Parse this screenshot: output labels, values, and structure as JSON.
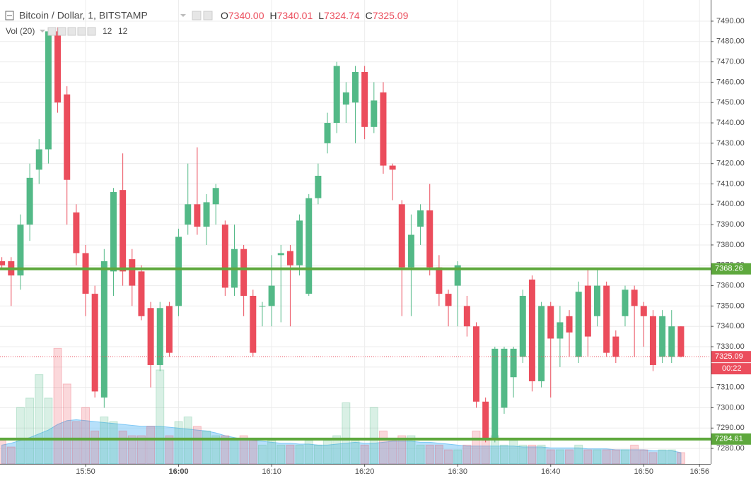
{
  "chart_data": {
    "type": "candlestick",
    "title": "Bitcoin / Dollar, 1, BITSTAMP",
    "ohlc_readout": [
      {
        "label": "O",
        "value": "7340.00"
      },
      {
        "label": "H",
        "value": "7340.01"
      },
      {
        "label": "L",
        "value": "7324.74"
      },
      {
        "label": "C",
        "value": "7325.09"
      }
    ],
    "volume_title": "Vol (20)",
    "volume_readout": [
      12,
      12
    ],
    "up_color": "#53b987",
    "down_color": "#eb4d5c",
    "ma_color": "#7cc7f5",
    "x": [
      941,
      942,
      943,
      944,
      945,
      946,
      947,
      948,
      949,
      950,
      951,
      952,
      953,
      954,
      955,
      956,
      957,
      958,
      959,
      960,
      961,
      962,
      963,
      964,
      965,
      966,
      967,
      968,
      969,
      970,
      971,
      972,
      973,
      974,
      975,
      976,
      977,
      978,
      979,
      980,
      981,
      982,
      983,
      984,
      985,
      986,
      987,
      988,
      989,
      990,
      991,
      992,
      993,
      994,
      995,
      996,
      997,
      998,
      999,
      1000,
      1001,
      1002,
      1003,
      1004,
      1005,
      1006,
      1007,
      1008,
      1009,
      1010,
      1011,
      1012,
      1013,
      1014
    ],
    "open": [
      7372,
      7372,
      7365,
      7390,
      7417,
      7427,
      7485,
      7454,
      7396,
      7376,
      7356,
      7305,
      7367,
      7407,
      7373,
      7367,
      7349,
      7321,
      7350,
      7350,
      7390,
      7400,
      7389,
      7400,
      7390,
      7359,
      7378,
      7355,
      7350,
      7350,
      7375,
      7377,
      7370,
      7356,
      7403,
      7430,
      7440,
      7449,
      7450,
      7465,
      7438,
      7455,
      7419,
      7400,
      7369,
      7389,
      7397,
      7369,
      7356,
      7360,
      7350,
      7340,
      7303,
      7285,
      7300,
      7315,
      7325,
      7363,
      7313,
      7350,
      7334,
      7345,
      7325,
      7360,
      7345,
      7360,
      7335,
      7345,
      7358,
      7350,
      7345,
      7325,
      7325,
      7340
    ],
    "high": [
      7374,
      7374,
      7395,
      7420,
      7432,
      7487,
      7487,
      7458,
      7400,
      7380,
      7360,
      7378,
      7408,
      7425,
      7378,
      7370,
      7352,
      7352,
      7352,
      7388,
      7420,
      7428,
      7405,
      7410,
      7392,
      7390,
      7380,
      7358,
      7352,
      7375,
      7380,
      7380,
      7395,
      7405,
      7420,
      7445,
      7470,
      7460,
      7468,
      7468,
      7460,
      7460,
      7420,
      7402,
      7395,
      7400,
      7410,
      7375,
      7358,
      7372,
      7355,
      7342,
      7305,
      7330,
      7330,
      7330,
      7358,
      7365,
      7352,
      7352,
      7350,
      7348,
      7362,
      7368,
      7368,
      7362,
      7338,
      7360,
      7360,
      7352,
      7348,
      7348,
      7348,
      7340.01
    ],
    "low": [
      7368,
      7350,
      7358,
      7382,
      7410,
      7420,
      7445,
      7390,
      7370,
      7345,
      7305,
      7300,
      7355,
      7360,
      7350,
      7343,
      7310,
      7318,
      7325,
      7345,
      7385,
      7385,
      7380,
      7390,
      7355,
      7355,
      7345,
      7325,
      7340,
      7340,
      7342,
      7340,
      7365,
      7355,
      7400,
      7425,
      7435,
      7440,
      7430,
      7432,
      7435,
      7415,
      7402,
      7345,
      7345,
      7380,
      7365,
      7350,
      7340,
      7340,
      7335,
      7300,
      7283,
      7283,
      7297,
      7305,
      7322,
      7308,
      7310,
      7305,
      7320,
      7325,
      7322,
      7325,
      7340,
      7325,
      7322,
      7340,
      7325,
      7330,
      7318,
      7322,
      7322,
      7324.74
    ],
    "close": [
      7370,
      7365,
      7390,
      7413,
      7427,
      7485,
      7450,
      7412,
      7376,
      7356,
      7308,
      7372,
      7406,
      7367,
      7360,
      7345,
      7321,
      7349,
      7327,
      7384,
      7400,
      7389,
      7401,
      7408,
      7359,
      7378,
      7355,
      7327,
      7350,
      7360,
      7376,
      7370,
      7392,
      7403,
      7414,
      7440,
      7468,
      7455,
      7465,
      7438,
      7451,
      7419,
      7417,
      7369,
      7385,
      7397,
      7369,
      7356,
      7350,
      7370,
      7340,
      7303,
      7285,
      7329,
      7329,
      7329,
      7355,
      7313,
      7350,
      7334,
      7342,
      7337,
      7357,
      7335,
      7360,
      7327,
      7325,
      7358,
      7350,
      7345,
      7321,
      7345,
      7340,
      7325.09
    ],
    "volume": [
      25,
      18,
      60,
      70,
      95,
      70,
      123,
      85,
      45,
      60,
      35,
      50,
      45,
      35,
      30,
      30,
      40,
      100,
      30,
      45,
      50,
      40,
      35,
      30,
      30,
      25,
      30,
      25,
      20,
      25,
      20,
      20,
      20,
      25,
      20,
      25,
      30,
      65,
      25,
      20,
      60,
      35,
      25,
      30,
      30,
      20,
      20,
      20,
      15,
      15,
      20,
      35,
      25,
      30,
      20,
      25,
      20,
      20,
      20,
      15,
      15,
      15,
      20,
      15,
      15,
      15,
      15,
      15,
      20,
      15,
      12,
      15,
      15,
      12
    ],
    "volume_ma": [
      20,
      22,
      25,
      28,
      32,
      36,
      42,
      46,
      47,
      46,
      45,
      44,
      43,
      42,
      41,
      40,
      40,
      40,
      39,
      38,
      37,
      36,
      35,
      33,
      30,
      28,
      26,
      25,
      24,
      23,
      22,
      22,
      21,
      21,
      20,
      20,
      21,
      22,
      23,
      22,
      22,
      23,
      24,
      24,
      24,
      23,
      23,
      22,
      21,
      20,
      19,
      19,
      19,
      19,
      19,
      19,
      18,
      18,
      18,
      17,
      17,
      17,
      17,
      16,
      16,
      16,
      15,
      15,
      15,
      15,
      14,
      14,
      14,
      12
    ],
    "vlim": [
      0,
      130
    ],
    "xlim": [
      940.8,
      1017.2
    ],
    "xticks": [
      {
        "value": 950,
        "label": "15:50"
      },
      {
        "value": 960,
        "label": "16:00"
      },
      {
        "value": 970,
        "label": "16:10"
      },
      {
        "value": 980,
        "label": "16:20"
      },
      {
        "value": 990,
        "label": "16:30"
      },
      {
        "value": 1000,
        "label": "16:40"
      },
      {
        "value": 1010,
        "label": "16:50"
      },
      {
        "value": 1016,
        "label": "16:56"
      }
    ],
    "ylim": [
      7272.4,
      7500.4
    ],
    "yticks": [
      {
        "value": 7280,
        "label": "7280.00"
      },
      {
        "value": 7290,
        "label": "7290.00"
      },
      {
        "value": 7300,
        "label": "7300.00"
      },
      {
        "value": 7310,
        "label": "7310.00"
      },
      {
        "value": 7320,
        "label": "7320.00"
      },
      {
        "value": 7330,
        "label": "7330.00"
      },
      {
        "value": 7340,
        "label": "7340.00"
      },
      {
        "value": 7350,
        "label": "7350.00"
      },
      {
        "value": 7360,
        "label": "7360.00"
      },
      {
        "value": 7370,
        "label": "7370.00"
      },
      {
        "value": 7380,
        "label": "7380.00"
      },
      {
        "value": 7390,
        "label": "7390.00"
      },
      {
        "value": 7400,
        "label": "7400.00"
      },
      {
        "value": 7410,
        "label": "7410.00"
      },
      {
        "value": 7420,
        "label": "7420.00"
      },
      {
        "value": 7430,
        "label": "7430.00"
      },
      {
        "value": 7440,
        "label": "7440.00"
      },
      {
        "value": 7450,
        "label": "7450.00"
      },
      {
        "value": 7460,
        "label": "7460.00"
      },
      {
        "value": 7470,
        "label": "7470.00"
      },
      {
        "value": 7480,
        "label": "7480.00"
      },
      {
        "value": 7490,
        "label": "7490.00"
      }
    ],
    "grid": true,
    "price_lines": [
      {
        "value": 7368.26,
        "color": "#5ea83d"
      },
      {
        "value": 7284.61,
        "color": "#5ea83d"
      }
    ],
    "last_price": {
      "value": 7325.09,
      "countdown": "00:22",
      "color": "#eb4d5c"
    }
  }
}
